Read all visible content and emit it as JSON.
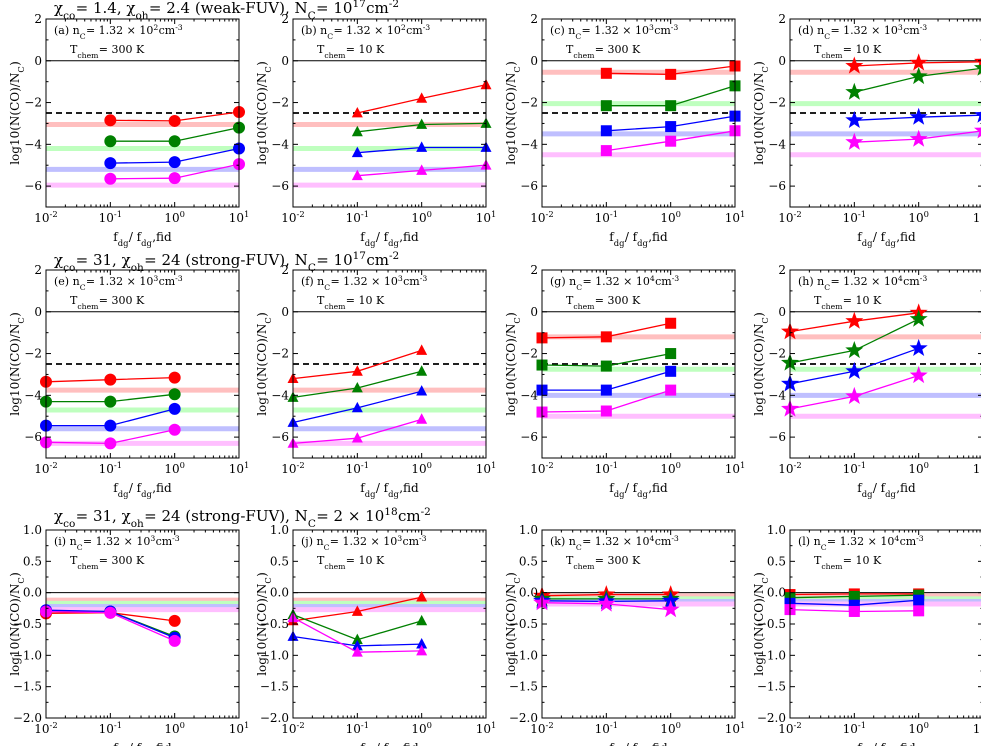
{
  "colors": {
    "red": "#ff0000",
    "green": "#008000",
    "blue": "#0000ff",
    "magenta": "#ff00ff",
    "red_band": "#ffbfbf",
    "green_band": "#bfffbf",
    "blue_band": "#bfbfff",
    "magenta_band": "#ffbfff"
  },
  "row_titles": [
    "χ_co = 1.4,  χ_oh = 2.4 (weak-FUV),  N_C = 10^17 cm^-2",
    "χ_co = 31,  χ_oh = 24 (strong-FUV),  N_C = 10^17 cm^-2",
    "χ_co = 31,  χ_oh = 24 (strong-FUV),  N_C = 2 × 10^18 cm^-2"
  ],
  "xlabel": "f_dg / f_dg,fid",
  "ylabel": "log10(N(CO)/N_C)",
  "x_tick_labels": [
    "10^-2",
    "10^-1",
    "10^0",
    "10^1"
  ],
  "chart_data": [
    {
      "type": "line",
      "label": "(a) n_C = 1.32 × 10^2 cm^-3",
      "tchem": "T_chem = 300 K",
      "marker": "circle",
      "xscale": "log",
      "xlim": [
        0.01,
        10
      ],
      "ylim": [
        -7,
        2
      ],
      "yticks": [
        2,
        0,
        -2,
        -4,
        -6
      ],
      "ytick_labels": [
        "2",
        "0",
        "−2",
        "−4",
        "−6"
      ],
      "hline": 0,
      "dashed": -2.5,
      "bands": [
        -3.05,
        -4.2,
        -5.2,
        -5.95
      ],
      "series": [
        {
          "x": [
            0.1,
            1,
            10
          ],
          "values": [
            -2.85,
            -2.88,
            -2.45
          ]
        },
        {
          "x": [
            0.1,
            1,
            10
          ],
          "values": [
            -3.85,
            -3.85,
            -3.2
          ]
        },
        {
          "x": [
            0.1,
            1,
            10
          ],
          "values": [
            -4.9,
            -4.85,
            -4.2
          ]
        },
        {
          "x": [
            0.1,
            1,
            10
          ],
          "values": [
            -5.65,
            -5.62,
            -4.95
          ]
        }
      ]
    },
    {
      "type": "line",
      "label": "(b) n_C = 1.32 × 10^2 cm^-3",
      "tchem": "T_chem = 10 K",
      "marker": "triangle",
      "xscale": "log",
      "xlim": [
        0.01,
        10
      ],
      "ylim": [
        -7,
        2
      ],
      "yticks": [
        2,
        0,
        -2,
        -4,
        -6
      ],
      "ytick_labels": [
        "2",
        "0",
        "−2",
        "−4",
        "−6"
      ],
      "hline": 0,
      "dashed": -2.5,
      "bands": [
        -3.05,
        -4.2,
        -5.2,
        -5.95
      ],
      "series": [
        {
          "x": [
            0.1,
            1,
            10
          ],
          "values": [
            -2.5,
            -1.8,
            -1.15
          ]
        },
        {
          "x": [
            0.1,
            1,
            10
          ],
          "values": [
            -3.4,
            -3.05,
            -3.0
          ]
        },
        {
          "x": [
            0.1,
            1,
            10
          ],
          "values": [
            -4.4,
            -4.15,
            -4.15
          ]
        },
        {
          "x": [
            0.1,
            1,
            10
          ],
          "values": [
            -5.5,
            -5.25,
            -5.0
          ]
        }
      ]
    },
    {
      "type": "line",
      "label": "(c) n_C = 1.32 × 10^3 cm^-3",
      "tchem": "T_chem = 300 K",
      "marker": "square",
      "xscale": "log",
      "xlim": [
        0.01,
        10
      ],
      "ylim": [
        -7,
        2
      ],
      "yticks": [
        2,
        0,
        -2,
        -4,
        -6
      ],
      "ytick_labels": [
        "2",
        "0",
        "−2",
        "−4",
        "−6"
      ],
      "hline": 0,
      "dashed": -2.5,
      "bands": [
        -0.55,
        -2.05,
        -3.5,
        -4.5
      ],
      "series": [
        {
          "x": [
            0.1,
            1,
            10
          ],
          "values": [
            -0.6,
            -0.65,
            -0.25
          ]
        },
        {
          "x": [
            0.1,
            1,
            10
          ],
          "values": [
            -2.15,
            -2.15,
            -1.2
          ]
        },
        {
          "x": [
            0.1,
            1,
            10
          ],
          "values": [
            -3.35,
            -3.15,
            -2.65
          ]
        },
        {
          "x": [
            0.1,
            1,
            10
          ],
          "values": [
            -4.3,
            -3.85,
            -3.35
          ]
        }
      ]
    },
    {
      "type": "line",
      "label": "(d) n_C = 1.32 × 10^3 cm^-3",
      "tchem": "T_chem = 10 K",
      "marker": "star",
      "xscale": "log",
      "xlim": [
        0.01,
        10
      ],
      "ylim": [
        -7,
        2
      ],
      "yticks": [
        2,
        0,
        -2,
        -4,
        -6
      ],
      "ytick_labels": [
        "2",
        "0",
        "−2",
        "−4",
        "−6"
      ],
      "hline": 0,
      "dashed": -2.5,
      "bands": [
        -0.55,
        -2.05,
        -3.5,
        -4.5
      ],
      "series": [
        {
          "x": [
            0.1,
            1,
            10
          ],
          "values": [
            -0.25,
            -0.1,
            -0.05
          ]
        },
        {
          "x": [
            0.1,
            1,
            10
          ],
          "values": [
            -1.5,
            -0.75,
            -0.35
          ]
        },
        {
          "x": [
            0.1,
            1,
            10
          ],
          "values": [
            -2.85,
            -2.7,
            -2.6
          ]
        },
        {
          "x": [
            0.1,
            1,
            10
          ],
          "values": [
            -3.9,
            -3.75,
            -3.35
          ]
        }
      ]
    },
    {
      "type": "line",
      "label": "(e) n_C = 1.32 × 10^3 cm^-3",
      "tchem": "T_chem = 300 K",
      "marker": "circle",
      "xscale": "log",
      "xlim": [
        0.01,
        10
      ],
      "ylim": [
        -7,
        2
      ],
      "yticks": [
        2,
        0,
        -2,
        -4,
        -6
      ],
      "ytick_labels": [
        "2",
        "0",
        "−2",
        "−4",
        "−6"
      ],
      "hline": 0,
      "dashed": -2.5,
      "bands": [
        -3.75,
        -4.7,
        -5.6,
        -6.3
      ],
      "series": [
        {
          "x": [
            0.01,
            0.1,
            1
          ],
          "values": [
            -3.35,
            -3.25,
            -3.15
          ]
        },
        {
          "x": [
            0.01,
            0.1,
            1
          ],
          "values": [
            -4.3,
            -4.3,
            -3.95
          ]
        },
        {
          "x": [
            0.01,
            0.1,
            1
          ],
          "values": [
            -5.45,
            -5.45,
            -4.65
          ]
        },
        {
          "x": [
            0.01,
            0.1,
            1
          ],
          "values": [
            -6.25,
            -6.3,
            -5.65
          ]
        }
      ]
    },
    {
      "type": "line",
      "label": "(f) n_C = 1.32 × 10^3 cm^-3",
      "tchem": "T_chem = 10 K",
      "marker": "triangle",
      "xscale": "log",
      "xlim": [
        0.01,
        10
      ],
      "ylim": [
        -7,
        2
      ],
      "yticks": [
        2,
        0,
        -2,
        -4,
        -6
      ],
      "ytick_labels": [
        "2",
        "0",
        "−2",
        "−4",
        "−6"
      ],
      "hline": 0,
      "dashed": -2.5,
      "bands": [
        -3.75,
        -4.7,
        -5.6,
        -6.3
      ],
      "series": [
        {
          "x": [
            0.01,
            0.1,
            1
          ],
          "values": [
            -3.2,
            -2.85,
            -1.85
          ]
        },
        {
          "x": [
            0.01,
            0.1,
            1
          ],
          "values": [
            -4.1,
            -3.65,
            -2.85
          ]
        },
        {
          "x": [
            0.01,
            0.1,
            1
          ],
          "values": [
            -5.3,
            -4.6,
            -3.8
          ]
        },
        {
          "x": [
            0.01,
            0.1,
            1
          ],
          "values": [
            -6.3,
            -6.05,
            -5.15
          ]
        }
      ]
    },
    {
      "type": "line",
      "label": "(g) n_C = 1.32 × 10^4 cm^-3",
      "tchem": "T_chem = 300 K",
      "marker": "square",
      "xscale": "log",
      "xlim": [
        0.01,
        10
      ],
      "ylim": [
        -7,
        2
      ],
      "yticks": [
        2,
        0,
        -2,
        -4,
        -6
      ],
      "ytick_labels": [
        "2",
        "0",
        "−2",
        "−4",
        "−6"
      ],
      "hline": 0,
      "dashed": -2.5,
      "bands": [
        -1.2,
        -2.75,
        -4.0,
        -5.0
      ],
      "series": [
        {
          "x": [
            0.01,
            0.1,
            1
          ],
          "values": [
            -1.25,
            -1.2,
            -0.55
          ]
        },
        {
          "x": [
            0.01,
            0.1,
            1
          ],
          "values": [
            -2.55,
            -2.6,
            -2.0
          ]
        },
        {
          "x": [
            0.01,
            0.1,
            1
          ],
          "values": [
            -3.75,
            -3.75,
            -2.85
          ]
        },
        {
          "x": [
            0.01,
            0.1,
            1
          ],
          "values": [
            -4.8,
            -4.75,
            -3.75
          ]
        }
      ]
    },
    {
      "type": "line",
      "label": "(h) n_C = 1.32 × 10^4 cm^-3",
      "tchem": "T_chem = 10 K",
      "marker": "star",
      "xscale": "log",
      "xlim": [
        0.01,
        10
      ],
      "ylim": [
        -7,
        2
      ],
      "yticks": [
        2,
        0,
        -2,
        -4,
        -6
      ],
      "ytick_labels": [
        "2",
        "0",
        "−2",
        "−4",
        "−6"
      ],
      "hline": 0,
      "dashed": -2.5,
      "bands": [
        -1.2,
        -2.75,
        -4.0,
        -5.0
      ],
      "series": [
        {
          "x": [
            0.01,
            0.1,
            1
          ],
          "values": [
            -0.95,
            -0.45,
            -0.05
          ]
        },
        {
          "x": [
            0.01,
            0.1,
            1
          ],
          "values": [
            -2.45,
            -1.85,
            -0.35
          ]
        },
        {
          "x": [
            0.01,
            0.1,
            1
          ],
          "values": [
            -3.45,
            -2.85,
            -1.75
          ]
        },
        {
          "x": [
            0.01,
            0.1,
            1
          ],
          "values": [
            -4.65,
            -4.05,
            -3.05
          ]
        }
      ]
    },
    {
      "type": "line",
      "label": "(i) n_C = 1.32 × 10^3 cm^-3",
      "tchem": "T_chem = 300 K",
      "marker": "circle",
      "xscale": "log",
      "xlim": [
        0.01,
        10
      ],
      "ylim": [
        -2,
        1
      ],
      "yticks": [
        1,
        0.5,
        0,
        -0.5,
        -1,
        -1.5,
        -2
      ],
      "ytick_labels": [
        "1.0",
        "0.5",
        "0.0",
        "−0.5",
        "−1.0",
        "−1.5",
        "−2.0"
      ],
      "hline": 0,
      "dashed": null,
      "bands": [
        -0.12,
        -0.17,
        -0.22,
        -0.27
      ],
      "series": [
        {
          "x": [
            0.01,
            0.1,
            1
          ],
          "values": [
            -0.33,
            -0.32,
            -0.45
          ]
        },
        {
          "x": [
            0.01,
            0.1,
            1
          ],
          "values": [
            -0.3,
            -0.3,
            -0.7
          ]
        },
        {
          "x": [
            0.01,
            0.1,
            1
          ],
          "values": [
            -0.28,
            -0.3,
            -0.72
          ]
        },
        {
          "x": [
            0.01,
            0.1,
            1
          ],
          "values": [
            -0.3,
            -0.32,
            -0.77
          ]
        }
      ]
    },
    {
      "type": "line",
      "label": "(j) n_C = 1.32 × 10^3 cm^-3",
      "tchem": "T_chem = 10 K",
      "marker": "triangle",
      "xscale": "log",
      "xlim": [
        0.01,
        10
      ],
      "ylim": [
        -2,
        1
      ],
      "yticks": [
        1,
        0.5,
        0,
        -0.5,
        -1,
        -1.5,
        -2
      ],
      "ytick_labels": [
        "1.0",
        "0.5",
        "0.0",
        "−0.5",
        "−1.0",
        "−1.5",
        "−2.0"
      ],
      "hline": 0,
      "dashed": null,
      "bands": [
        -0.12,
        -0.17,
        -0.22,
        -0.27
      ],
      "series": [
        {
          "x": [
            0.01,
            0.1,
            1
          ],
          "values": [
            -0.45,
            -0.3,
            -0.07
          ]
        },
        {
          "x": [
            0.01,
            0.1,
            1
          ],
          "values": [
            -0.35,
            -0.75,
            -0.45
          ]
        },
        {
          "x": [
            0.01,
            0.1,
            1
          ],
          "values": [
            -0.7,
            -0.85,
            -0.82
          ]
        },
        {
          "x": [
            0.01,
            0.1,
            1
          ],
          "values": [
            -0.4,
            -0.95,
            -0.93
          ]
        }
      ]
    },
    {
      "type": "line",
      "label": "(k) n_C = 1.32 × 10^4 cm^-3",
      "tchem": "T_chem = 300 K",
      "marker": "star",
      "xscale": "log",
      "xlim": [
        0.01,
        10
      ],
      "ylim": [
        -2,
        1
      ],
      "yticks": [
        1,
        0.5,
        0,
        -0.5,
        -1,
        -1.5,
        -2
      ],
      "ytick_labels": [
        "1.0",
        "0.5",
        "0.0",
        "−0.5",
        "−1.0",
        "−1.5",
        "−2.0"
      ],
      "hline": 0,
      "dashed": null,
      "bands": [
        -0.05,
        -0.1,
        -0.14,
        -0.18
      ],
      "series": [
        {
          "x": [
            0.01,
            0.1,
            1
          ],
          "values": [
            -0.05,
            -0.03,
            -0.03
          ]
        },
        {
          "x": [
            0.01,
            0.1,
            1
          ],
          "values": [
            -0.1,
            -0.1,
            -0.1
          ]
        },
        {
          "x": [
            0.01,
            0.1,
            1
          ],
          "values": [
            -0.13,
            -0.14,
            -0.13
          ]
        },
        {
          "x": [
            0.01,
            0.1,
            1
          ],
          "values": [
            -0.16,
            -0.18,
            -0.27
          ]
        }
      ]
    },
    {
      "type": "line",
      "label": "(l) n_C = 1.32 × 10^4 cm^-3",
      "tchem": "T_chem = 10 K",
      "marker": "square",
      "xscale": "log",
      "xlim": [
        0.01,
        10
      ],
      "ylim": [
        -2,
        1
      ],
      "yticks": [
        1,
        0.5,
        0,
        -0.5,
        -1,
        -1.5,
        -2
      ],
      "ytick_labels": [
        "1.0",
        "0.5",
        "0.0",
        "−0.5",
        "−1.0",
        "−1.5",
        "−2.0"
      ],
      "hline": 0,
      "dashed": null,
      "bands": [
        -0.05,
        -0.1,
        -0.14,
        -0.18
      ],
      "series": [
        {
          "x": [
            0.01,
            0.1,
            1
          ],
          "values": [
            -0.03,
            -0.02,
            -0.02
          ]
        },
        {
          "x": [
            0.01,
            0.1,
            1
          ],
          "values": [
            -0.08,
            -0.06,
            -0.04
          ]
        },
        {
          "x": [
            0.01,
            0.1,
            1
          ],
          "values": [
            -0.17,
            -0.2,
            -0.12
          ]
        },
        {
          "x": [
            0.01,
            0.1,
            1
          ],
          "values": [
            -0.27,
            -0.3,
            -0.29
          ]
        }
      ]
    }
  ]
}
